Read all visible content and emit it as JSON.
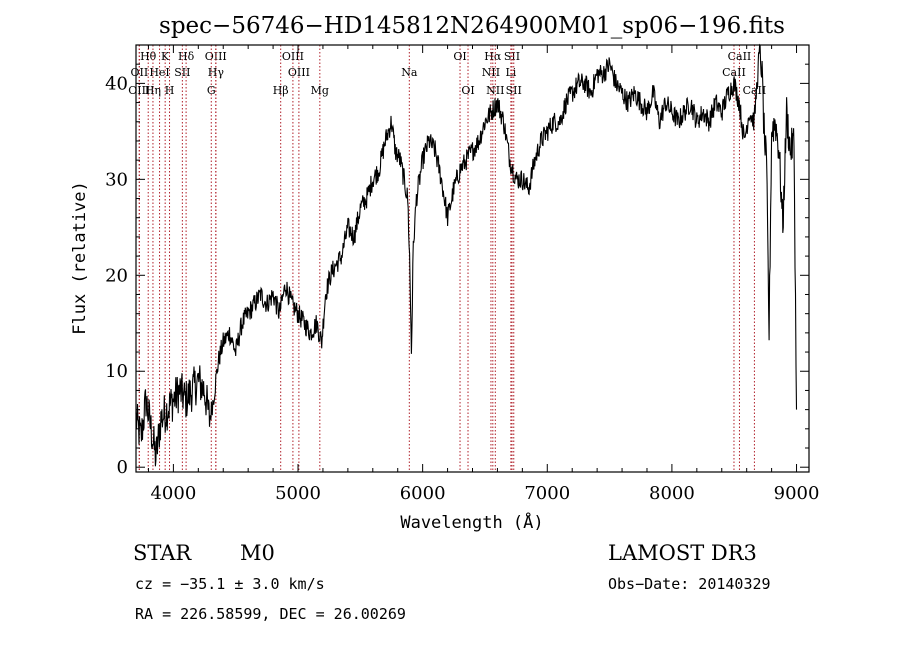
{
  "chart_data": {
    "type": "line",
    "title": "spec−56746−HD145812N264900M01_sp06−196.fits",
    "xlabel": "Wavelength (Å)",
    "ylabel": "Flux (relative)",
    "xlim": [
      3700,
      9100
    ],
    "ylim": [
      -0.5,
      44
    ],
    "xticks": [
      4000,
      5000,
      6000,
      7000,
      8000,
      9000
    ],
    "yticks": [
      0,
      10,
      20,
      30,
      40
    ],
    "series": [
      {
        "name": "spectrum",
        "x": [
          3700,
          3740,
          3780,
          3820,
          3860,
          3900,
          3950,
          4000,
          4050,
          4100,
          4150,
          4200,
          4250,
          4290,
          4320,
          4360,
          4400,
          4450,
          4500,
          4550,
          4600,
          4650,
          4700,
          4750,
          4800,
          4850,
          4900,
          4950,
          5000,
          5050,
          5100,
          5150,
          5190,
          5220,
          5260,
          5300,
          5350,
          5400,
          5450,
          5500,
          5550,
          5600,
          5650,
          5700,
          5750,
          5780,
          5820,
          5850,
          5880,
          5895,
          5910,
          5925,
          5950,
          6000,
          6050,
          6100,
          6150,
          6200,
          6250,
          6300,
          6350,
          6400,
          6450,
          6500,
          6550,
          6600,
          6650,
          6700,
          6750,
          6800,
          6850,
          6900,
          6950,
          7000,
          7050,
          7100,
          7150,
          7200,
          7250,
          7300,
          7350,
          7400,
          7450,
          7500,
          7550,
          7600,
          7650,
          7700,
          7750,
          7800,
          7850,
          7900,
          7950,
          8000,
          8050,
          8100,
          8150,
          8200,
          8250,
          8300,
          8350,
          8400,
          8450,
          8500,
          8540,
          8580,
          8620,
          8660,
          8700,
          8720,
          8740,
          8760,
          8780,
          8800,
          8830,
          8860,
          8890,
          8920,
          8950,
          8980,
          9000
        ],
        "y": [
          5,
          3,
          7,
          4,
          1,
          5,
          6,
          7,
          8,
          7,
          8,
          9,
          8,
          5,
          7,
          11,
          13,
          14,
          12,
          15,
          16,
          17,
          18,
          17,
          18,
          16,
          19,
          17,
          16,
          15,
          14,
          15,
          13,
          18,
          20,
          21,
          22,
          25,
          24,
          27,
          28,
          30,
          31,
          34,
          36,
          33,
          32,
          30,
          28,
          22,
          12,
          23,
          28,
          32,
          34,
          33,
          30,
          26,
          29,
          31,
          32,
          33,
          34,
          36,
          37,
          38,
          36,
          32,
          30,
          30,
          29,
          32,
          34,
          35,
          36,
          36,
          38,
          39,
          40,
          40,
          39,
          41,
          41,
          42,
          40,
          39,
          38,
          39,
          38,
          37,
          39,
          36,
          38,
          37,
          36,
          37,
          38,
          36,
          37,
          36,
          38,
          37,
          39,
          40,
          38,
          34,
          37,
          36,
          43,
          42,
          35,
          31,
          14,
          35,
          36,
          33,
          25,
          37,
          33,
          34,
          6
        ]
      }
    ],
    "lines": [
      {
        "label": "Hθ",
        "wl": 3798,
        "row": 0
      },
      {
        "label": "K",
        "wl": 3934,
        "row": 0
      },
      {
        "label": "Hδ",
        "wl": 4102,
        "row": 0
      },
      {
        "label": "OIII",
        "wl": 4340,
        "row": 0
      },
      {
        "label": "OIII",
        "wl": 4959,
        "row": 0
      },
      {
        "label": "OI",
        "wl": 6300,
        "row": 0
      },
      {
        "label": "Hα",
        "wl": 6563,
        "row": 0
      },
      {
        "label": "SII",
        "wl": 6717,
        "row": 0
      },
      {
        "label": "CaII",
        "wl": 8542,
        "row": 0
      },
      {
        "label": "OII",
        "wl": 3727,
        "row": 1
      },
      {
        "label": "HeI",
        "wl": 3889,
        "row": 1
      },
      {
        "label": "SII",
        "wl": 4072,
        "row": 1
      },
      {
        "label": "Hγ",
        "wl": 4341,
        "row": 1
      },
      {
        "label": "OIII",
        "wl": 5007,
        "row": 1
      },
      {
        "label": "Na",
        "wl": 5893,
        "row": 1
      },
      {
        "label": "NII",
        "wl": 6548,
        "row": 1
      },
      {
        "label": "Li",
        "wl": 6708,
        "row": 1
      },
      {
        "label": "CaII",
        "wl": 8498,
        "row": 1
      },
      {
        "label": "OIII",
        "wl": 3726,
        "row": 2
      },
      {
        "label": "Hη",
        "wl": 3836,
        "row": 2
      },
      {
        "label": "H",
        "wl": 3969,
        "row": 2
      },
      {
        "label": "G",
        "wl": 4304,
        "row": 2
      },
      {
        "label": "Hβ",
        "wl": 4861,
        "row": 2
      },
      {
        "label": "Mg",
        "wl": 5175,
        "row": 2
      },
      {
        "label": "OI",
        "wl": 6364,
        "row": 2
      },
      {
        "label": "NII",
        "wl": 6583,
        "row": 2
      },
      {
        "label": "SII",
        "wl": 6731,
        "row": 2
      },
      {
        "label": "CaII",
        "wl": 8662,
        "row": 2
      }
    ]
  },
  "info": {
    "class_label": "STAR",
    "subclass": "M0",
    "survey": "LAMOST DR3",
    "cz": "cz = −35.1 ± 3.0 km/s",
    "obs_date": "Obs−Date: 20140329",
    "coords": "RA = 226.58599, DEC =  26.00269"
  },
  "colors": {
    "axis": "#000000",
    "spectrum": "#000000",
    "lines": "#b0202a"
  }
}
